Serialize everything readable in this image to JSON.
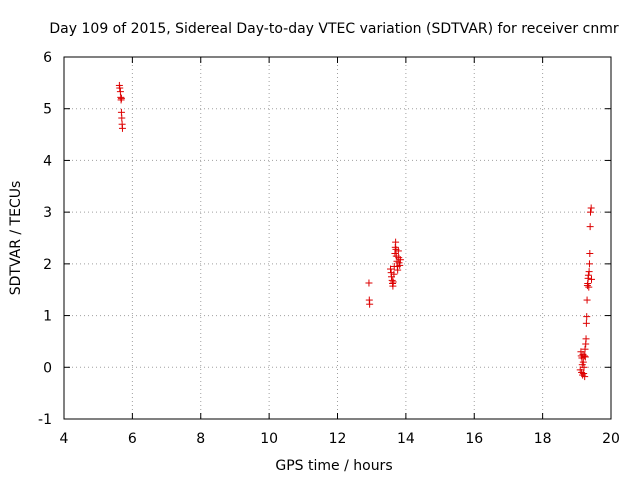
{
  "chart_data": {
    "type": "scatter",
    "title": "Day 109 of 2015, Sidereal Day-to-day VTEC variation (SDTVAR) for receiver cnmr",
    "xlabel": "GPS time / hours",
    "ylabel": "SDTVAR / TECUs",
    "xlim": [
      4,
      20
    ],
    "ylim": [
      -1,
      6
    ],
    "xticks": [
      4,
      6,
      8,
      10,
      12,
      14,
      16,
      18,
      20
    ],
    "yticks": [
      -1,
      0,
      1,
      2,
      3,
      4,
      5,
      6
    ],
    "grid": true,
    "marker": "+",
    "color": "#dd0000",
    "series": [
      {
        "name": "SDTVAR",
        "points": [
          [
            5.62,
            5.45
          ],
          [
            5.63,
            5.4
          ],
          [
            5.65,
            5.33
          ],
          [
            5.66,
            5.22
          ],
          [
            5.67,
            5.17
          ],
          [
            5.68,
            5.2
          ],
          [
            5.68,
            4.93
          ],
          [
            5.69,
            4.82
          ],
          [
            5.7,
            4.7
          ],
          [
            5.71,
            4.62
          ],
          [
            12.92,
            1.63
          ],
          [
            12.93,
            1.3
          ],
          [
            12.94,
            1.22
          ],
          [
            13.55,
            1.9
          ],
          [
            13.57,
            1.83
          ],
          [
            13.58,
            1.75
          ],
          [
            13.6,
            1.68
          ],
          [
            13.61,
            1.62
          ],
          [
            13.62,
            1.57
          ],
          [
            13.63,
            1.65
          ],
          [
            13.65,
            1.8
          ],
          [
            13.66,
            1.95
          ],
          [
            13.68,
            2.2
          ],
          [
            13.69,
            2.32
          ],
          [
            13.7,
            2.42
          ],
          [
            13.71,
            2.28
          ],
          [
            13.72,
            2.15
          ],
          [
            13.74,
            2.05
          ],
          [
            13.75,
            1.95
          ],
          [
            13.76,
            1.88
          ],
          [
            13.78,
            2.25
          ],
          [
            13.79,
            2.12
          ],
          [
            13.8,
            2.02
          ],
          [
            13.82,
            1.97
          ],
          [
            13.84,
            2.08
          ],
          [
            19.1,
            -0.05
          ],
          [
            19.12,
            0.3
          ],
          [
            19.13,
            0.22
          ],
          [
            19.14,
            -0.1
          ],
          [
            19.15,
            0.18
          ],
          [
            19.16,
            0.05
          ],
          [
            19.17,
            -0.15
          ],
          [
            19.18,
            0.25
          ],
          [
            19.19,
            0.1
          ],
          [
            19.2,
            -0.12
          ],
          [
            19.21,
            0.0
          ],
          [
            19.22,
            0.22
          ],
          [
            19.23,
            -0.18
          ],
          [
            19.24,
            0.35
          ],
          [
            19.25,
            0.2
          ],
          [
            19.26,
            0.45
          ],
          [
            19.27,
            0.55
          ],
          [
            19.28,
            0.85
          ],
          [
            19.29,
            0.98
          ],
          [
            19.3,
            1.3
          ],
          [
            19.31,
            1.58
          ],
          [
            19.32,
            1.62
          ],
          [
            19.33,
            1.72
          ],
          [
            19.34,
            1.78
          ],
          [
            19.35,
            1.55
          ],
          [
            19.36,
            1.85
          ],
          [
            19.37,
            2.0
          ],
          [
            19.38,
            2.2
          ],
          [
            19.39,
            2.72
          ],
          [
            19.4,
            3.0
          ],
          [
            19.42,
            3.08
          ],
          [
            19.43,
            1.7
          ]
        ]
      }
    ]
  }
}
